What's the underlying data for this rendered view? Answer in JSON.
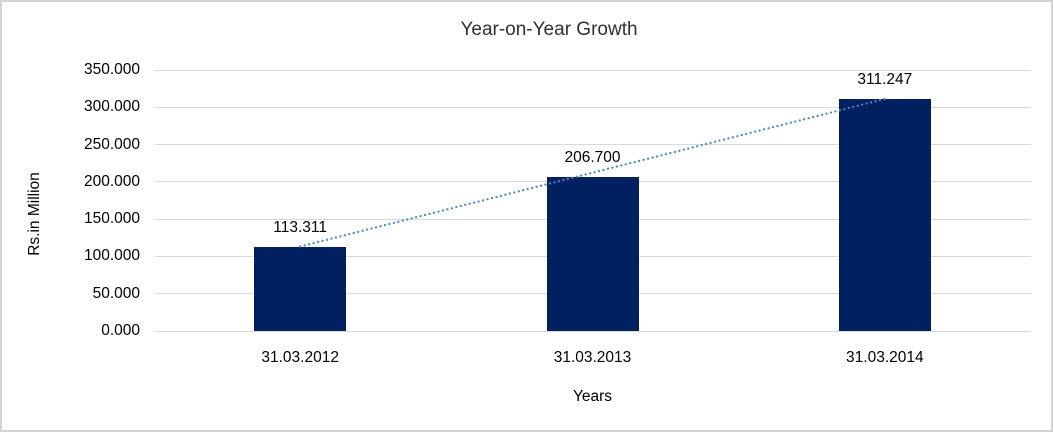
{
  "frame": {
    "background_color": "#ffffff",
    "border_color": "#d4d4d4"
  },
  "chart_data": {
    "type": "bar",
    "title": "Year-on-Year Growth",
    "xlabel": "Years",
    "ylabel": "Rs.in Million",
    "categories": [
      "31.03.2012",
      "31.03.2013",
      "31.03.2014"
    ],
    "values": [
      113.311,
      206.7,
      311.247
    ],
    "value_labels": [
      "113.311",
      "206.700",
      "311.247"
    ],
    "ylim": [
      0,
      350
    ],
    "yticks": [
      0,
      50,
      100,
      150,
      200,
      250,
      300,
      350
    ],
    "ytick_labels": [
      "0.000",
      "50.000",
      "100.000",
      "150.000",
      "200.000",
      "250.000",
      "300.000",
      "350.000"
    ],
    "grid": true,
    "legend_position": "none",
    "bar_color": "#002060",
    "gridline_color": "#d9d9d9",
    "trendline": {
      "type": "linear",
      "style": "dotted",
      "color": "#4a86c8",
      "from_value": 113.311,
      "to_value": 311.247
    }
  }
}
